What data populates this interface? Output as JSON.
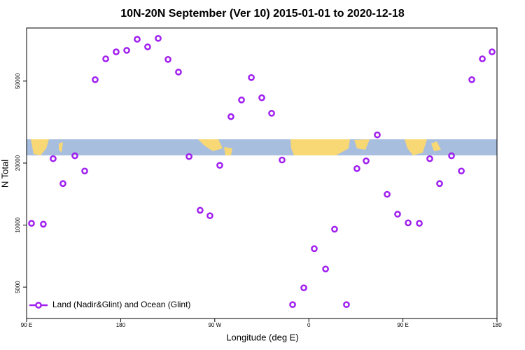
{
  "chart_data": {
    "type": "scatter",
    "title": "10N-20N September (Ver 10)   2015-01-01 to 2020-12-18",
    "x_label": "Longitude (deg E)",
    "y_label": "N Total",
    "log_y": true,
    "xlim": [
      90,
      540
    ],
    "ylim": [
      3520,
      90500
    ],
    "xticks": [
      {
        "value": 90,
        "label": "90 E"
      },
      {
        "value": 180,
        "label": "180"
      },
      {
        "value": 270,
        "label": "90 W"
      },
      {
        "value": 360,
        "label": "0"
      },
      {
        "value": 450,
        "label": "90 E"
      },
      {
        "value": 540,
        "label": "180"
      }
    ],
    "yticks": [
      5000,
      10000,
      20000,
      50000
    ],
    "legend": "lower left",
    "series": [
      {
        "name": "Land (Nadir&Glint) and Ocean (Glint)",
        "color": "#a020f0",
        "x": [
          94.7,
          106,
          115.4,
          124.8,
          136.2,
          145.6,
          155.6,
          165.7,
          175.7,
          185.8,
          195.8,
          205.8,
          215.9,
          225.3,
          235.3,
          245.4,
          256,
          265.4,
          274.8,
          285.5,
          295.6,
          305,
          315,
          324.4,
          334.4,
          344.5,
          355.2,
          365.2,
          376,
          384.6,
          396,
          406,
          414.8,
          425.5,
          434.9,
          444.9,
          455,
          465.7,
          475.7,
          485.1,
          496.5,
          505.9,
          515.9,
          526,
          535.3
        ],
        "values": [
          10200,
          10100,
          21000,
          15900,
          21700,
          18300,
          50800,
          64100,
          69300,
          70500,
          79800,
          73300,
          80600,
          63700,
          55300,
          21500,
          11800,
          11100,
          19500,
          33600,
          40500,
          52000,
          41500,
          34900,
          20700,
          4110,
          4960,
          7680,
          6120,
          9550,
          4110,
          18800,
          20500,
          27400,
          14100,
          11300,
          10250,
          10200,
          21000,
          15900,
          21700,
          18300,
          50800,
          64100,
          69300
        ]
      }
    ]
  }
}
